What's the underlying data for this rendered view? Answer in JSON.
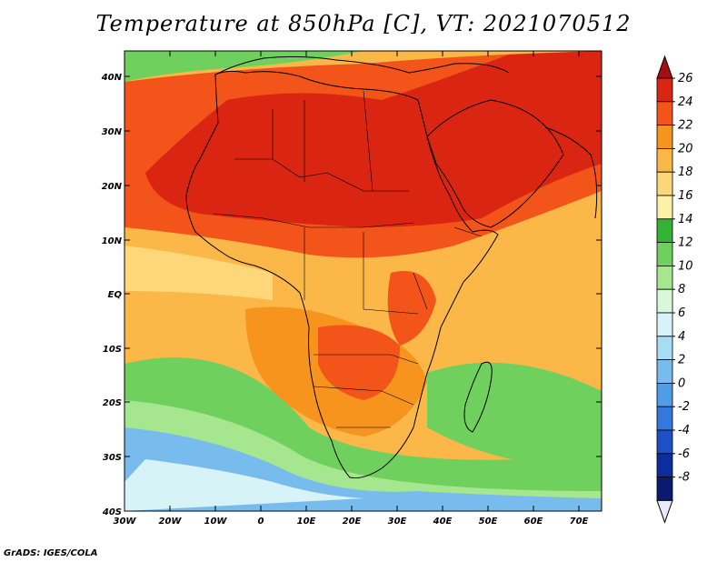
{
  "title": "Temperature at 850hPa [C], VT: 2021070512",
  "footer": "GrADS: IGES/COLA",
  "map": {
    "lon_ticks": [
      "30W",
      "20W",
      "10W",
      "0",
      "10E",
      "20E",
      "30E",
      "40E",
      "50E",
      "60E",
      "70E"
    ],
    "lat_ticks": [
      "40N",
      "30N",
      "20N",
      "10N",
      "EQ",
      "10S",
      "20S",
      "30S",
      "40S"
    ]
  },
  "colorbar": {
    "labels": [
      "26",
      "24",
      "22",
      "20",
      "18",
      "16",
      "14",
      "12",
      "10",
      "8",
      "6",
      "4",
      "2",
      "0",
      "-2",
      "-4",
      "-6",
      "-8"
    ],
    "colors": [
      "#a50f0f",
      "#d92511",
      "#f2541a",
      "#f7941d",
      "#fbb849",
      "#fdd77a",
      "#fdf1a8",
      "#34b234",
      "#6fd05e",
      "#a6e68f",
      "#d9f7d9",
      "#d8f3f8",
      "#a7dcf5",
      "#78bcee",
      "#4f9de6",
      "#3478dd",
      "#1f4fc7",
      "#0d2d9e",
      "#0a1a6e",
      "#e8e8f8"
    ]
  }
}
